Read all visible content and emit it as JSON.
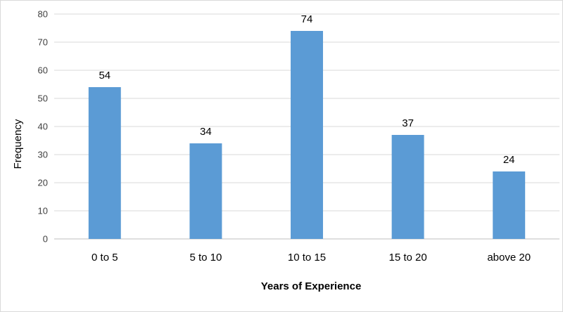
{
  "chart_data": {
    "type": "bar",
    "title": "",
    "xlabel": "Years of Experience",
    "ylabel": "Frequency",
    "categories": [
      "0 to 5",
      "5 to 10",
      "10 to 15",
      "15 to 20",
      "above 20"
    ],
    "values": [
      54,
      34,
      74,
      37,
      24
    ],
    "ylim": [
      0,
      80
    ],
    "yticks": [
      0,
      10,
      20,
      30,
      40,
      50,
      60,
      70,
      80
    ],
    "grid": true,
    "legend": "none",
    "colors": {
      "bar": "#5b9bd5",
      "grid": "#d9d9d9",
      "axis": "#bfbfbf"
    }
  }
}
